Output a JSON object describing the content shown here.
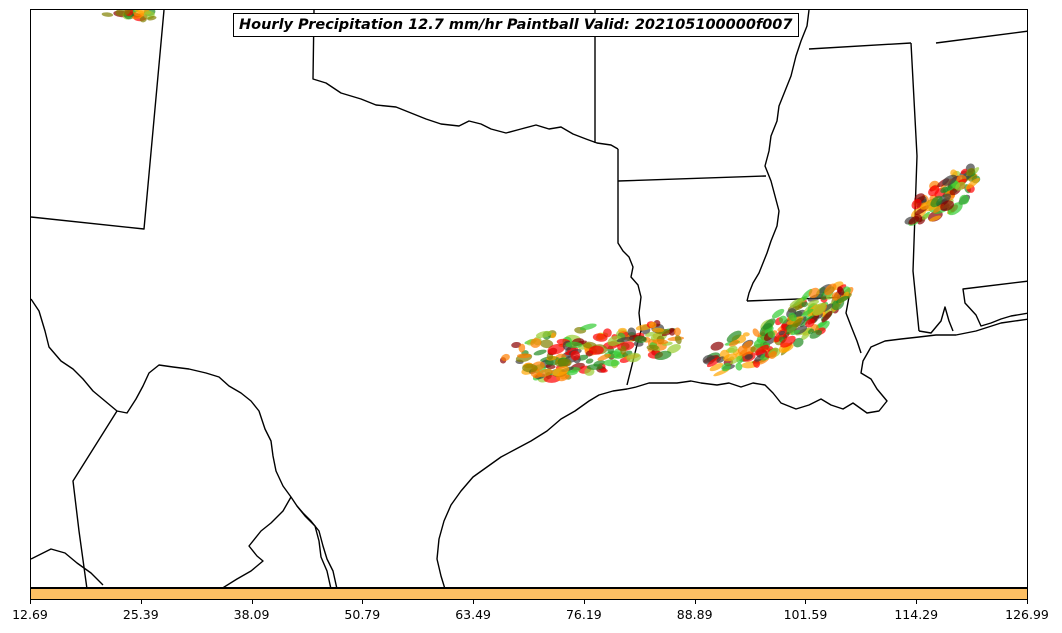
{
  "title": "Hourly Precipitation 12.7 mm/hr Paintball Valid: 202105100000f007",
  "colorbar": {
    "fill_color": "#FDBF63",
    "ticks": [
      "12.69",
      "25.39",
      "38.09",
      "50.79",
      "63.49",
      "76.19",
      "88.89",
      "101.59",
      "114.29",
      "126.99"
    ]
  },
  "map": {
    "background": "#ffffff",
    "boundary_color": "#000000",
    "paintball_colors": [
      "#FF0000",
      "#FF7F00",
      "#FFA500",
      "#33CC33",
      "#228B22",
      "#8B0000",
      "#808000",
      "#9ACD32",
      "#404040"
    ]
  }
}
